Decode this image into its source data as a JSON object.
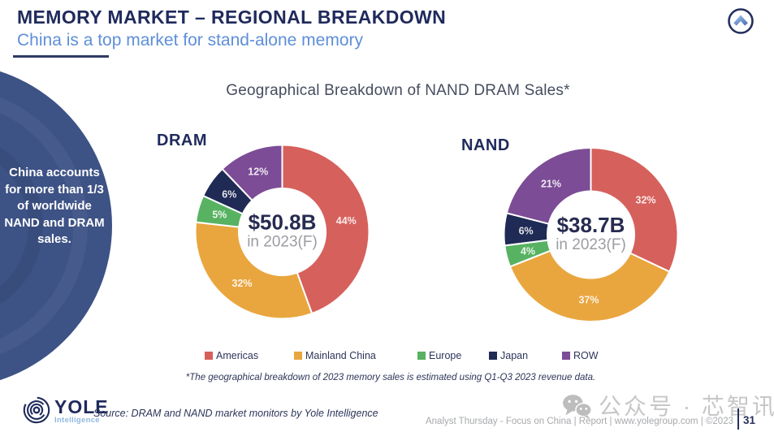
{
  "header": {
    "title": "MEMORY MARKET – REGIONAL BREAKDOWN",
    "subtitle": "China is a top market for stand-alone memory"
  },
  "top_nav_icon": "chevron-up-circle",
  "callout": {
    "text": "China accounts for more than 1/3 of worldwide NAND and DRAM sales."
  },
  "chart_title": "Geographical Breakdown of NAND DRAM Sales*",
  "chart_data": [
    {
      "type": "pie",
      "subtype": "donut",
      "title": "DRAM",
      "center_value": "$50.8B",
      "center_label": "in 2023(F)",
      "categories": [
        "Americas",
        "Mainland China",
        "Europe",
        "Japan",
        "ROW"
      ],
      "values": [
        44,
        32,
        5,
        6,
        12
      ],
      "unit": "%",
      "start_angle": "top",
      "direction": "clockwise",
      "legend_position": "bottom"
    },
    {
      "type": "pie",
      "subtype": "donut",
      "title": "NAND",
      "center_value": "$38.7B",
      "center_label": "in 2023(F)",
      "categories": [
        "Americas",
        "Mainland China",
        "Europe",
        "Japan",
        "ROW"
      ],
      "values": [
        32,
        37,
        4,
        6,
        21
      ],
      "unit": "%",
      "start_angle": "top",
      "direction": "clockwise",
      "legend_position": "bottom"
    }
  ],
  "legend": [
    {
      "label": "Americas",
      "color": "#D6605C"
    },
    {
      "label": "Mainland China",
      "color": "#E9A63F"
    },
    {
      "label": "Europe",
      "color": "#57B262"
    },
    {
      "label": "Japan",
      "color": "#1F2A55"
    },
    {
      "label": "ROW",
      "color": "#7C4C96"
    }
  ],
  "footnote": "*The geographical breakdown of 2023 memory sales is estimated using Q1-Q3 2023 revenue data.",
  "source": "Source: DRAM and NAND market monitors by Yole Intelligence",
  "logo": {
    "name": "YOLE",
    "sub": "Intelligence"
  },
  "watermark": "公众号 · 芯智讯",
  "footer": {
    "text": "Analyst Thursday - Focus on China | Report | www.yolegroup.com | ©2023",
    "page": "31"
  },
  "colors": {
    "heading_navy": "#1F2A5C",
    "subtitle_blue": "#5E8FD8",
    "callout_circle": "#3D5285",
    "center_value_text": "#262B4F",
    "center_sub_text": "#9C9CA3"
  }
}
